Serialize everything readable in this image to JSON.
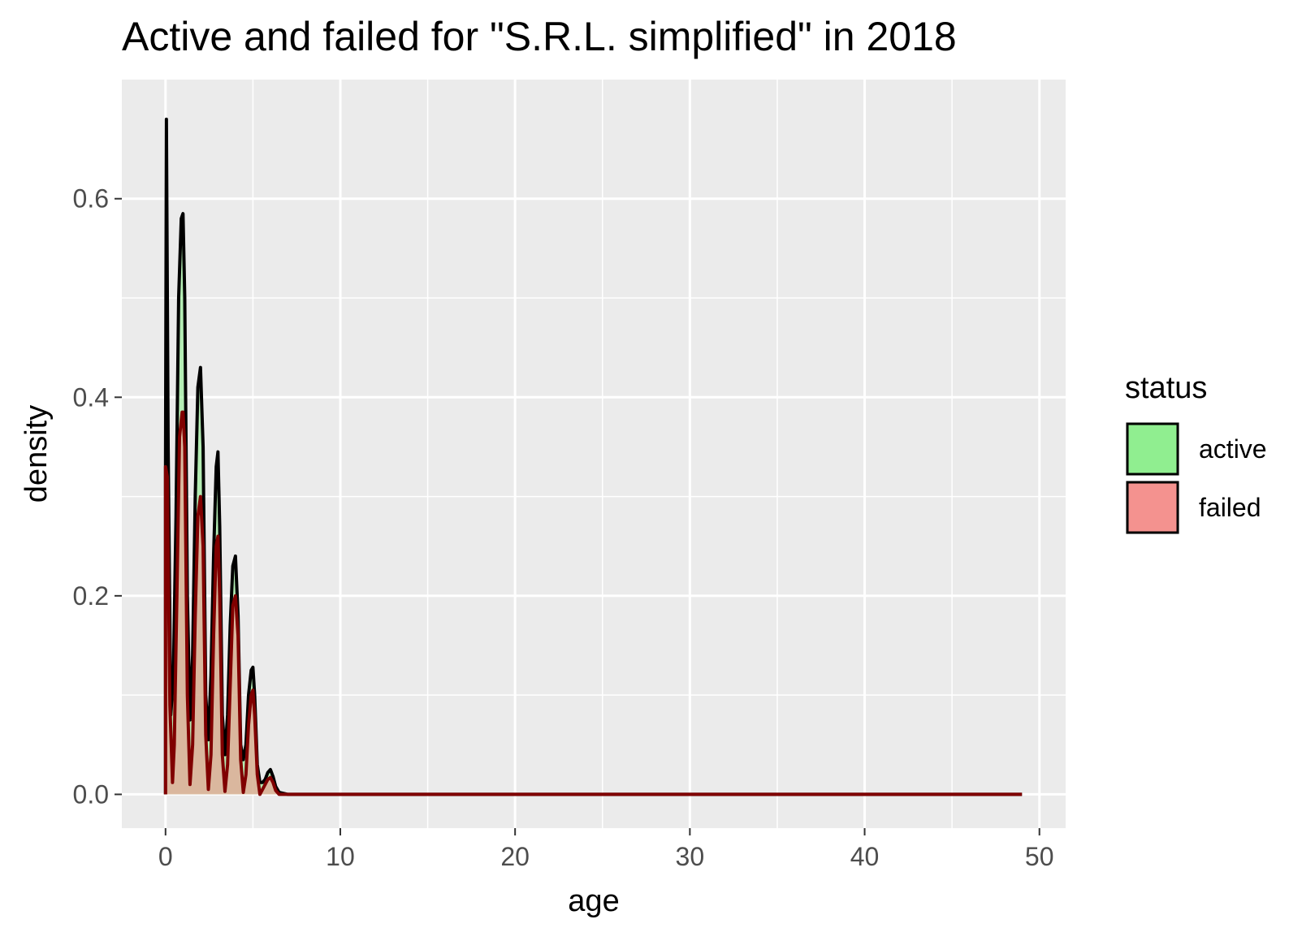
{
  "chart_data": {
    "type": "area",
    "subtype": "density",
    "title": "Active and failed for \"S.R.L. simplified\" in 2018",
    "xlabel": "age",
    "ylabel": "density",
    "xlim": [
      -2.5,
      51.5
    ],
    "ylim": [
      -0.034,
      0.72
    ],
    "x_ticks": [
      0,
      10,
      20,
      30,
      40,
      50
    ],
    "x_tick_labels": [
      "0",
      "10",
      "20",
      "30",
      "40",
      "50"
    ],
    "y_ticks": [
      0.0,
      0.2,
      0.4,
      0.6
    ],
    "y_tick_labels": [
      "0.0",
      "0.2",
      "0.4",
      "0.6"
    ],
    "x_minor_ticks": [
      5,
      15,
      25,
      35,
      45
    ],
    "y_minor_ticks": [
      0.1,
      0.3,
      0.5
    ],
    "grid": true,
    "legend": {
      "title": "status",
      "position": "right",
      "entries": [
        {
          "label": "active",
          "color": "#90EE90"
        },
        {
          "label": "failed",
          "color": "#F4928F"
        }
      ]
    },
    "series": [
      {
        "name": "active",
        "fill": "#90EE90",
        "line_color": "#000000",
        "x": [
          0,
          0.05,
          0.15,
          0.3,
          0.45,
          0.6,
          0.75,
          0.9,
          1.0,
          1.1,
          1.25,
          1.4,
          1.55,
          1.7,
          1.85,
          2.0,
          2.15,
          2.3,
          2.45,
          2.6,
          2.75,
          2.9,
          3.0,
          3.1,
          3.25,
          3.4,
          3.55,
          3.7,
          3.85,
          4.0,
          4.15,
          4.3,
          4.45,
          4.6,
          4.75,
          4.9,
          5.0,
          5.1,
          5.25,
          5.4,
          5.55,
          5.7,
          5.85,
          6.0,
          6.15,
          6.3,
          6.5,
          7,
          10,
          20,
          30,
          40,
          49
        ],
        "y": [
          0.33,
          0.68,
          0.35,
          0.08,
          0.12,
          0.28,
          0.5,
          0.58,
          0.585,
          0.5,
          0.2,
          0.075,
          0.14,
          0.3,
          0.41,
          0.43,
          0.35,
          0.1,
          0.055,
          0.12,
          0.24,
          0.33,
          0.345,
          0.27,
          0.08,
          0.04,
          0.08,
          0.17,
          0.23,
          0.24,
          0.18,
          0.05,
          0.035,
          0.05,
          0.1,
          0.125,
          0.128,
          0.1,
          0.03,
          0.012,
          0.012,
          0.015,
          0.022,
          0.025,
          0.018,
          0.008,
          0.002,
          0,
          0,
          0,
          0,
          0,
          0
        ]
      },
      {
        "name": "failed",
        "fill": "#F4928F",
        "line_color": "#800000",
        "x": [
          0,
          0.1,
          0.25,
          0.4,
          0.5,
          0.65,
          0.8,
          0.95,
          1.0,
          1.1,
          1.25,
          1.4,
          1.55,
          1.7,
          1.85,
          2.0,
          2.15,
          2.3,
          2.45,
          2.6,
          2.75,
          2.9,
          3.0,
          3.1,
          3.25,
          3.4,
          3.55,
          3.7,
          3.85,
          4.0,
          4.15,
          4.3,
          4.45,
          4.6,
          4.75,
          4.9,
          5.0,
          5.1,
          5.25,
          5.4,
          5.55,
          5.7,
          5.85,
          6.0,
          6.15,
          6.3,
          6.5,
          7,
          49
        ],
        "y": [
          0.33,
          0.32,
          0.09,
          0.012,
          0.05,
          0.2,
          0.36,
          0.385,
          0.385,
          0.35,
          0.1,
          0.01,
          0.05,
          0.18,
          0.28,
          0.3,
          0.25,
          0.06,
          0.005,
          0.04,
          0.16,
          0.25,
          0.26,
          0.2,
          0.04,
          0.003,
          0.03,
          0.11,
          0.19,
          0.2,
          0.16,
          0.035,
          0.002,
          0.02,
          0.07,
          0.1,
          0.105,
          0.08,
          0.02,
          0.0,
          0.005,
          0.01,
          0.015,
          0.017,
          0.012,
          0.004,
          0.0,
          0,
          0
        ]
      }
    ]
  }
}
